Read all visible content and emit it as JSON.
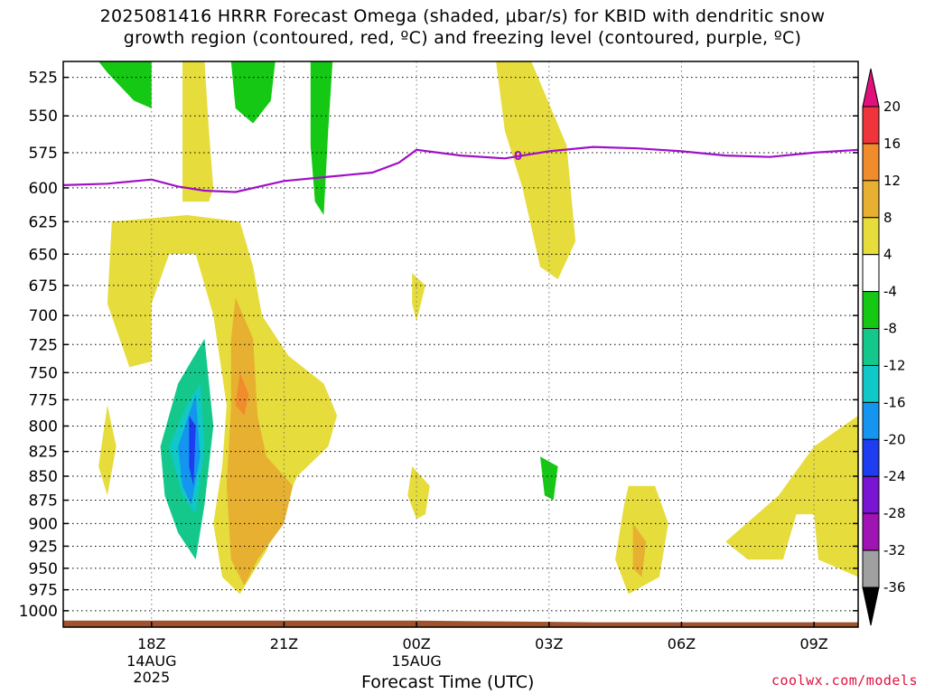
{
  "title": {
    "line1": "2025081416 HRRR Forecast Omega (shaded, μbar/s) for KBID with dendritic snow",
    "line2": "growth region (contoured, red, ºC) and freezing level (contoured, purple, ºC)"
  },
  "credit": "coolwx.com/models",
  "chart_data": {
    "type": "heatmap",
    "xlabel": "Forecast Time (UTC)",
    "ylabel": "",
    "x_ticks": [
      {
        "label": "18Z",
        "sub1": "14AUG",
        "sub2": "2025",
        "hour": 2
      },
      {
        "label": "21Z",
        "sub1": "",
        "sub2": "",
        "hour": 5
      },
      {
        "label": "00Z",
        "sub1": "15AUG",
        "sub2": "",
        "hour": 8
      },
      {
        "label": "03Z",
        "sub1": "",
        "sub2": "",
        "hour": 11
      },
      {
        "label": "06Z",
        "sub1": "",
        "sub2": "",
        "hour": 14
      },
      {
        "label": "09Z",
        "sub1": "",
        "sub2": "",
        "hour": 17
      }
    ],
    "xlim_hours": [
      0,
      18
    ],
    "y_ticks": [
      525,
      550,
      575,
      600,
      625,
      650,
      675,
      700,
      725,
      750,
      775,
      800,
      825,
      850,
      875,
      900,
      925,
      950,
      975,
      1000
    ],
    "ylim_hPa": [
      515,
      1020
    ],
    "grid": true,
    "colorbar": {
      "labels": [
        "20",
        "16",
        "12",
        "8",
        "4",
        "-4",
        "-8",
        "-12",
        "-16",
        "-20",
        "-24",
        "-28",
        "-32",
        "-36"
      ],
      "levels": [
        {
          "min": 16,
          "max": 20,
          "color": "#f0343c"
        },
        {
          "min": 12,
          "max": 16,
          "color": "#f08c2c"
        },
        {
          "min": 8,
          "max": 12,
          "color": "#e8b030"
        },
        {
          "min": 4,
          "max": 8,
          "color": "#e6dc3c"
        },
        {
          "min": -4,
          "max": 4,
          "color": "#ffffff"
        },
        {
          "min": -8,
          "max": -4,
          "color": "#14c814"
        },
        {
          "min": -12,
          "max": -8,
          "color": "#14c88c"
        },
        {
          "min": -16,
          "max": -12,
          "color": "#10c8c8"
        },
        {
          "min": -20,
          "max": -16,
          "color": "#1496f0"
        },
        {
          "min": -24,
          "max": -20,
          "color": "#1e3cf0"
        },
        {
          "min": -28,
          "max": -24,
          "color": "#7814d2"
        },
        {
          "min": -32,
          "max": -28,
          "color": "#a014b4"
        },
        {
          "min": -36,
          "max": -32,
          "color": "#a0a0a0"
        }
      ],
      "over_color": "#e0107c",
      "under_color": "#000000"
    },
    "freezing_level": {
      "label": "0",
      "color": "#a010c8",
      "points": [
        {
          "hour": 0,
          "p": 598
        },
        {
          "hour": 1,
          "p": 597
        },
        {
          "hour": 2,
          "p": 594
        },
        {
          "hour": 2.6,
          "p": 599
        },
        {
          "hour": 3.2,
          "p": 602
        },
        {
          "hour": 3.9,
          "p": 603
        },
        {
          "hour": 5,
          "p": 595
        },
        {
          "hour": 6,
          "p": 592
        },
        {
          "hour": 7,
          "p": 589
        },
        {
          "hour": 7.6,
          "p": 582
        },
        {
          "hour": 8,
          "p": 573
        },
        {
          "hour": 9,
          "p": 577
        },
        {
          "hour": 10,
          "p": 579
        },
        {
          "hour": 11,
          "p": 574
        },
        {
          "hour": 12,
          "p": 571
        },
        {
          "hour": 13,
          "p": 572
        },
        {
          "hour": 14,
          "p": 574
        },
        {
          "hour": 15,
          "p": 577
        },
        {
          "hour": 16,
          "p": 578
        },
        {
          "hour": 17,
          "p": 575
        },
        {
          "hour": 18,
          "p": 573
        }
      ]
    },
    "surface_pressure": [
      {
        "hour": 0,
        "p": 1012
      },
      {
        "hour": 8,
        "p": 1012
      },
      {
        "hour": 12,
        "p": 1014
      },
      {
        "hour": 18,
        "p": 1014
      }
    ],
    "surface_color": "#a0522d",
    "omega_features": [
      {
        "level": "4 to 8",
        "color": "#e6dc3c",
        "desc": "upper band 18Z-19Z",
        "points": [
          [
            2.7,
            515
          ],
          [
            3.2,
            515
          ],
          [
            3.3,
            560
          ],
          [
            3.4,
            600
          ],
          [
            3.3,
            610
          ],
          [
            2.7,
            610
          ]
        ]
      },
      {
        "level": "-8 to -4",
        "color": "#14c814",
        "desc": "green upper left",
        "points": [
          [
            0.8,
            515
          ],
          [
            2.0,
            515
          ],
          [
            2.0,
            545
          ],
          [
            1.6,
            540
          ],
          [
            1.0,
            522
          ]
        ]
      },
      {
        "level": "-8 to -4",
        "color": "#14c814",
        "desc": "green upper middle",
        "points": [
          [
            3.8,
            515
          ],
          [
            4.8,
            515
          ],
          [
            4.7,
            540
          ],
          [
            4.3,
            555
          ],
          [
            3.9,
            545
          ]
        ]
      },
      {
        "level": "-8 to -4",
        "color": "#14c814",
        "desc": "green narrow column",
        "points": [
          [
            5.6,
            515
          ],
          [
            6.1,
            515
          ],
          [
            6.0,
            560
          ],
          [
            5.9,
            620
          ],
          [
            5.7,
            610
          ],
          [
            5.6,
            570
          ]
        ]
      },
      {
        "level": "4 to 8",
        "color": "#e6dc3c",
        "desc": "upper right band",
        "points": [
          [
            9.8,
            515
          ],
          [
            10.6,
            515
          ],
          [
            11.4,
            570
          ],
          [
            11.6,
            640
          ],
          [
            11.2,
            670
          ],
          [
            10.8,
            660
          ],
          [
            10.4,
            600
          ],
          [
            10.0,
            560
          ]
        ]
      },
      {
        "level": "4 to 8",
        "color": "#e6dc3c",
        "desc": "left arc",
        "points": [
          [
            1.1,
            625
          ],
          [
            2.8,
            620
          ],
          [
            4.0,
            625
          ],
          [
            4.3,
            660
          ],
          [
            4.5,
            700
          ],
          [
            5.1,
            735
          ],
          [
            5.9,
            760
          ],
          [
            6.2,
            790
          ],
          [
            6.0,
            820
          ],
          [
            5.3,
            850
          ],
          [
            5.0,
            880
          ],
          [
            4.6,
            930
          ],
          [
            4.0,
            980
          ],
          [
            3.6,
            960
          ],
          [
            3.4,
            900
          ],
          [
            3.6,
            840
          ],
          [
            3.7,
            780
          ],
          [
            3.4,
            700
          ],
          [
            3.0,
            650
          ],
          [
            2.4,
            650
          ],
          [
            2.0,
            690
          ],
          [
            2.0,
            740
          ],
          [
            1.5,
            745
          ],
          [
            1.0,
            690
          ]
        ]
      },
      {
        "level": "8 to 12",
        "color": "#e8b030",
        "desc": "orange core",
        "points": [
          [
            3.9,
            685
          ],
          [
            4.3,
            720
          ],
          [
            4.4,
            790
          ],
          [
            4.6,
            830
          ],
          [
            5.2,
            860
          ],
          [
            5.0,
            900
          ],
          [
            4.4,
            940
          ],
          [
            4.1,
            970
          ],
          [
            3.8,
            940
          ],
          [
            3.7,
            860
          ],
          [
            3.8,
            780
          ],
          [
            3.8,
            720
          ]
        ]
      },
      {
        "level": "12 to 16",
        "color": "#f08c2c",
        "desc": "orange strip",
        "points": [
          [
            4.0,
            750
          ],
          [
            4.2,
            770
          ],
          [
            4.1,
            790
          ],
          [
            3.9,
            780
          ]
        ]
      },
      {
        "level": "4 to 8",
        "color": "#e6dc3c",
        "desc": "blob near 00Z upper",
        "points": [
          [
            7.9,
            665
          ],
          [
            8.2,
            675
          ],
          [
            8.0,
            705
          ],
          [
            7.9,
            690
          ]
        ]
      },
      {
        "level": "4 to 8",
        "color": "#e6dc3c",
        "desc": "blob near 00Z lower",
        "points": [
          [
            7.9,
            840
          ],
          [
            8.3,
            860
          ],
          [
            8.2,
            890
          ],
          [
            8.0,
            895
          ],
          [
            7.8,
            870
          ]
        ]
      },
      {
        "level": "4 to 8",
        "color": "#e6dc3c",
        "desc": "blob left edge",
        "points": [
          [
            1.0,
            780
          ],
          [
            1.2,
            820
          ],
          [
            1.0,
            870
          ],
          [
            0.8,
            840
          ]
        ]
      },
      {
        "level": "-8 to -4",
        "color": "#14c814",
        "desc": "green blob 03Z",
        "points": [
          [
            10.8,
            830
          ],
          [
            11.2,
            840
          ],
          [
            11.1,
            875
          ],
          [
            10.9,
            870
          ]
        ]
      },
      {
        "level": "4 to 8",
        "color": "#e6dc3c",
        "desc": "blob 05Z",
        "points": [
          [
            12.8,
            860
          ],
          [
            13.4,
            860
          ],
          [
            13.7,
            900
          ],
          [
            13.5,
            960
          ],
          [
            12.8,
            980
          ],
          [
            12.5,
            940
          ],
          [
            12.7,
            880
          ]
        ]
      },
      {
        "level": "8 to 12",
        "color": "#e8b030",
        "desc": "orange blob 05Z",
        "points": [
          [
            12.9,
            900
          ],
          [
            13.2,
            920
          ],
          [
            13.1,
            960
          ],
          [
            12.9,
            950
          ]
        ]
      },
      {
        "level": "4 to 8",
        "color": "#e6dc3c",
        "desc": "right lower region",
        "points": [
          [
            15.0,
            920
          ],
          [
            16.2,
            870
          ],
          [
            17.0,
            820
          ],
          [
            18.0,
            790
          ],
          [
            18.0,
            960
          ],
          [
            17.1,
            940
          ],
          [
            17.0,
            890
          ],
          [
            16.6,
            890
          ],
          [
            16.3,
            940
          ],
          [
            15.5,
            940
          ]
        ]
      },
      {
        "level": "-12 to -8",
        "color": "#14c88c",
        "desc": "teal ring",
        "points": [
          [
            2.2,
            820
          ],
          [
            2.6,
            760
          ],
          [
            3.2,
            720
          ],
          [
            3.4,
            800
          ],
          [
            3.2,
            880
          ],
          [
            3.0,
            940
          ],
          [
            2.6,
            910
          ],
          [
            2.3,
            870
          ]
        ]
      },
      {
        "level": "-16 to -12",
        "color": "#10c8c8",
        "desc": "cyan ring",
        "points": [
          [
            2.4,
            820
          ],
          [
            2.8,
            780
          ],
          [
            3.1,
            760
          ],
          [
            3.2,
            820
          ],
          [
            3.0,
            890
          ],
          [
            2.7,
            870
          ]
        ]
      },
      {
        "level": "-20 to -16",
        "color": "#1496f0",
        "desc": "light blue",
        "points": [
          [
            2.6,
            820
          ],
          [
            3.0,
            770
          ],
          [
            3.1,
            830
          ],
          [
            2.9,
            880
          ],
          [
            2.7,
            860
          ]
        ]
      },
      {
        "level": "-24 to -20",
        "color": "#1e3cf0",
        "desc": "dark blue core",
        "points": [
          [
            2.85,
            790
          ],
          [
            3.0,
            800
          ],
          [
            2.95,
            860
          ],
          [
            2.85,
            840
          ]
        ]
      }
    ]
  }
}
